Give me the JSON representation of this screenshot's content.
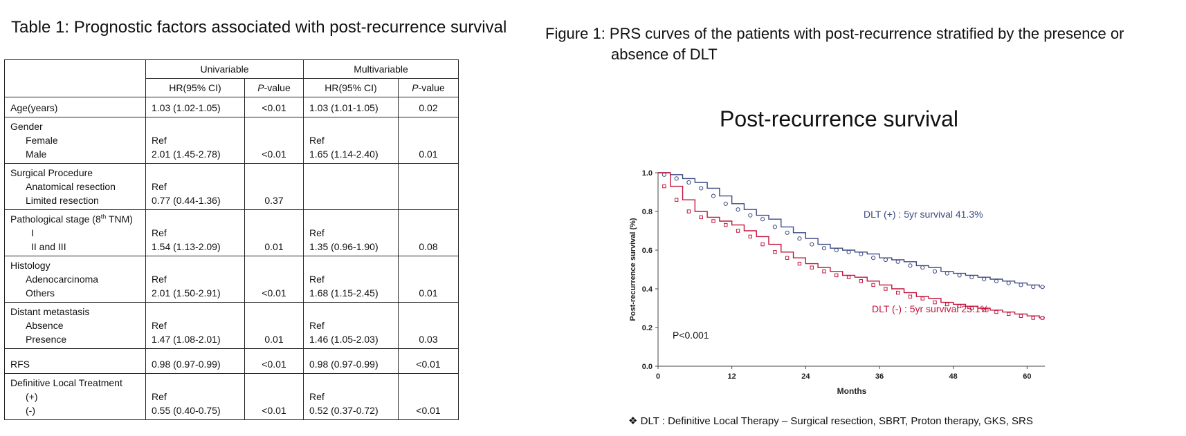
{
  "table": {
    "title": "Table 1: Prognostic factors associated with post-recurrence survival",
    "group_headers": [
      "Univariable",
      "Multivariable"
    ],
    "sub_headers": {
      "hr": "HR(95% CI)",
      "p_italic": "P",
      "p_suffix": "-value"
    },
    "rows": [
      {
        "name": "Age(years)",
        "sub": [],
        "uni_hr": [
          "1.03 (1.02-1.05)"
        ],
        "uni_p": "<0.01",
        "multi_hr": [
          "1.03 (1.01-1.05)"
        ],
        "multi_p": "0.02"
      },
      {
        "name": "Gender",
        "sub": [
          "Female",
          "Male"
        ],
        "uni_hr": [
          "Ref",
          "2.01 (1.45-2.78)"
        ],
        "uni_p": "<0.01",
        "multi_hr": [
          "Ref",
          "1.65 (1.14-2.40)"
        ],
        "multi_p": "0.01"
      },
      {
        "name": "Surgical Procedure",
        "sub": [
          "Anatomical resection",
          "Limited resection"
        ],
        "uni_hr": [
          "Ref",
          "0.77 (0.44-1.36)"
        ],
        "uni_p": "0.37",
        "multi_hr": [],
        "multi_p": ""
      },
      {
        "name": "Pathological stage (8",
        "name_sup": "th",
        "name_suffix": " TNM)",
        "sub": [
          "I",
          "II and III"
        ],
        "uni_hr": [
          "Ref",
          "1.54 (1.13-2.09)"
        ],
        "uni_p": "0.01",
        "multi_hr": [
          "Ref",
          "1.35 (0.96-1.90)"
        ],
        "multi_p": "0.08"
      },
      {
        "name": "Histology",
        "sub": [
          "Adenocarcinoma",
          "Others"
        ],
        "uni_hr": [
          "Ref",
          "2.01 (1.50-2.91)"
        ],
        "uni_p": "<0.01",
        "multi_hr": [
          "Ref",
          "1.68 (1.15-2.45)"
        ],
        "multi_p": "0.01"
      },
      {
        "name": "Distant metastasis",
        "sub": [
          "Absence",
          "Presence"
        ],
        "uni_hr": [
          "Ref",
          "1.47 (1.08-2.01)"
        ],
        "uni_p": "0.01",
        "multi_hr": [
          "Ref",
          "1.46 (1.05-2.03)"
        ],
        "multi_p": "0.03"
      },
      {
        "name": "RFS",
        "sub": [],
        "uni_hr": [
          "0.98 (0.97-0.99)"
        ],
        "uni_p": "<0.01",
        "multi_hr": [
          "0.98 (0.97-0.99)"
        ],
        "multi_p": "<0.01"
      },
      {
        "name": "Definitive Local Treatment",
        "sub": [
          "(+)",
          "(-)"
        ],
        "uni_hr": [
          "Ref",
          "0.55 (0.40-0.75)"
        ],
        "uni_p": "<0.01",
        "multi_hr": [
          "Ref",
          "0.52 (0.37-0.72)"
        ],
        "multi_p": "<0.01"
      }
    ]
  },
  "figure": {
    "caption_line1": "Figure 1: PRS curves of the patients with post-recurrence stratified by the presence or",
    "caption_line2": "absence of DLT",
    "footnote_symbol": "❖",
    "footnote": "DLT : Definitive Local Therapy – Surgical resection, SBRT, Proton therapy, GKS, SRS"
  },
  "chart_data": {
    "type": "line",
    "title": "Post-recurrence survival",
    "xlabel": "Months",
    "ylabel": "Post-recurrence survival (%)",
    "xlim": [
      0,
      63
    ],
    "ylim": [
      0,
      1
    ],
    "xticks": [
      0,
      12,
      24,
      36,
      48,
      60
    ],
    "xtick_labels": [
      "0",
      "12",
      "24",
      "36",
      "48",
      "60"
    ],
    "yticks": [
      0,
      0.2,
      0.4,
      0.6,
      0.8,
      1.0
    ],
    "ytick_labels": [
      "0.0",
      "0.2",
      "0.4",
      "0.6",
      "0.8",
      "1.0"
    ],
    "annotation": "P<0.001",
    "colors": {
      "dlt_pos": "#3c4a82",
      "dlt_neg": "#c0143c"
    },
    "series": [
      {
        "label": "DLT (+) : 5yr survival 41.3%",
        "color": "#3c4a82",
        "x": [
          0,
          2,
          4,
          6,
          8,
          10,
          12,
          14,
          16,
          18,
          20,
          22,
          24,
          26,
          28,
          30,
          32,
          34,
          36,
          38,
          40,
          42,
          44,
          46,
          48,
          50,
          52,
          54,
          56,
          58,
          60,
          62,
          63
        ],
        "y": [
          1.0,
          0.99,
          0.97,
          0.95,
          0.92,
          0.88,
          0.84,
          0.81,
          0.78,
          0.76,
          0.72,
          0.69,
          0.66,
          0.63,
          0.61,
          0.6,
          0.59,
          0.58,
          0.56,
          0.55,
          0.54,
          0.52,
          0.51,
          0.49,
          0.48,
          0.47,
          0.46,
          0.45,
          0.44,
          0.43,
          0.42,
          0.41,
          0.41
        ]
      },
      {
        "label": "DLT (-) : 5yr survival 25.1%",
        "color": "#c0143c",
        "x": [
          0,
          2,
          4,
          6,
          8,
          10,
          12,
          14,
          16,
          18,
          20,
          22,
          24,
          26,
          28,
          30,
          32,
          34,
          36,
          38,
          40,
          42,
          44,
          46,
          48,
          50,
          52,
          54,
          56,
          58,
          60,
          62,
          63
        ],
        "y": [
          1.0,
          0.93,
          0.86,
          0.8,
          0.77,
          0.75,
          0.73,
          0.7,
          0.67,
          0.63,
          0.59,
          0.56,
          0.53,
          0.51,
          0.49,
          0.47,
          0.46,
          0.44,
          0.42,
          0.4,
          0.38,
          0.36,
          0.35,
          0.33,
          0.32,
          0.31,
          0.3,
          0.29,
          0.28,
          0.27,
          0.26,
          0.25,
          0.25
        ]
      }
    ]
  }
}
